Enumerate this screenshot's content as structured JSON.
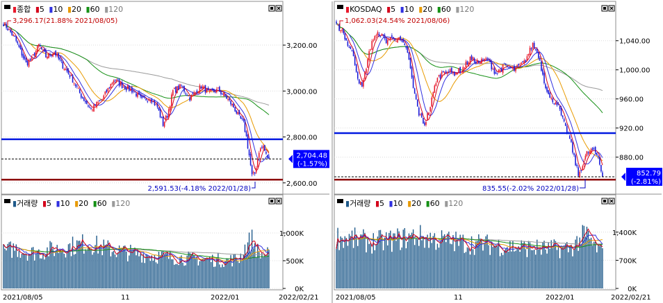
{
  "colors": {
    "up": "#e8192c",
    "down": "#1a1ad8",
    "ma5": "#d4001a",
    "ma10": "#3030e0",
    "ma20": "#e89a00",
    "ma60": "#159015",
    "ma120": "#9a9a9a",
    "support": "#8b0000",
    "resistance": "#0018e0",
    "volume": "#1f5a8a",
    "tag_bg": "#0000ff"
  },
  "panels": [
    {
      "id": "kospi",
      "legend": {
        "name": "종합",
        "ma": [
          "5",
          "10",
          "20",
          "60",
          "120"
        ]
      },
      "high_note": "3,296.17(21.88% 2021/08/05)",
      "low_note": "2,591.53(-4.18% 2022/01/28)",
      "price_tag": "2,704.48",
      "change_tag": "(-1.57%)",
      "resistance": 2790,
      "support": 2614,
      "volume_legend": {
        "name": "거래량",
        "ma": [
          "5",
          "10",
          "20",
          "60",
          "120"
        ]
      }
    },
    {
      "id": "kosdaq",
      "legend": {
        "name": "KOSDAQ",
        "ma": [
          "5",
          "10",
          "20",
          "60",
          "120"
        ]
      },
      "high_note": "1,062.03(24.54% 2021/08/06)",
      "low_note": "835.55(-2.02% 2022/01/28)",
      "price_tag": "852.79",
      "change_tag": "(-2.81%)",
      "resistance": 913,
      "support": 849,
      "volume_legend": {
        "name": "거래량",
        "ma": [
          "5",
          "10",
          "20",
          "60",
          "120"
        ]
      }
    }
  ],
  "x_axis": {
    "labels": [
      "2021/08/05",
      "11",
      "2022/01",
      "2022/02/21"
    ]
  },
  "chart_data": [
    {
      "type": "candlestick",
      "title": "종합",
      "yticks": [
        "3,200.00",
        "3,000.00",
        "2,800.00",
        "2,600.00"
      ],
      "yvalues": [
        3200,
        3000,
        2800,
        2600
      ],
      "ylim": [
        2560,
        3330
      ],
      "anchors": [
        [
          0,
          3296
        ],
        [
          4,
          3265
        ],
        [
          8,
          3230
        ],
        [
          12,
          3175
        ],
        [
          16,
          3120
        ],
        [
          20,
          3140
        ],
        [
          25,
          3200
        ],
        [
          30,
          3150
        ],
        [
          36,
          3170
        ],
        [
          42,
          3110
        ],
        [
          48,
          3060
        ],
        [
          55,
          2980
        ],
        [
          62,
          2920
        ],
        [
          70,
          2965
        ],
        [
          78,
          3050
        ],
        [
          85,
          3020
        ],
        [
          92,
          3000
        ],
        [
          98,
          2960
        ],
        [
          104,
          2970
        ],
        [
          109,
          2930
        ],
        [
          113,
          2855
        ],
        [
          116,
          2895
        ],
        [
          120,
          3000
        ],
        [
          126,
          3020
        ],
        [
          132,
          2970
        ],
        [
          140,
          3020
        ],
        [
          146,
          2990
        ],
        [
          152,
          3005
        ],
        [
          158,
          2970
        ],
        [
          163,
          2930
        ],
        [
          167,
          2885
        ],
        [
          170,
          2860
        ],
        [
          172,
          2800
        ],
        [
          174,
          2720
        ],
        [
          176,
          2630
        ],
        [
          178,
          2640
        ],
        [
          181,
          2740
        ],
        [
          184,
          2760
        ],
        [
          186,
          2720
        ],
        [
          188,
          2704
        ]
      ],
      "vol_ylim": [
        0,
        1450000
      ],
      "vol_yticks": [
        "1,000K",
        "500K",
        "0K"
      ],
      "vol_yvalues": [
        1000000,
        500000,
        0
      ],
      "vol_anchors": [
        [
          0,
          650
        ],
        [
          8,
          730
        ],
        [
          20,
          640
        ],
        [
          35,
          700
        ],
        [
          48,
          760
        ],
        [
          60,
          820
        ],
        [
          72,
          720
        ],
        [
          90,
          640
        ],
        [
          104,
          600
        ],
        [
          115,
          570
        ],
        [
          130,
          540
        ],
        [
          145,
          520
        ],
        [
          158,
          500
        ],
        [
          167,
          540
        ],
        [
          172,
          780
        ],
        [
          176,
          880
        ],
        [
          181,
          620
        ],
        [
          188,
          600
        ]
      ]
    },
    {
      "type": "candlestick",
      "title": "KOSDAQ",
      "yticks": [
        "1,040.00",
        "1,000.00",
        "960.00",
        "920.00",
        "880.00"
      ],
      "yvalues": [
        1040,
        1000,
        960,
        920,
        880
      ],
      "ylim": [
        832,
        1075
      ],
      "anchors": [
        [
          0,
          1060
        ],
        [
          4,
          1055
        ],
        [
          8,
          1035
        ],
        [
          12,
          1020
        ],
        [
          15,
          990
        ],
        [
          18,
          975
        ],
        [
          21,
          1005
        ],
        [
          25,
          1040
        ],
        [
          30,
          1050
        ],
        [
          35,
          1040
        ],
        [
          40,
          1045
        ],
        [
          45,
          1040
        ],
        [
          50,
          1025
        ],
        [
          54,
          975
        ],
        [
          58,
          940
        ],
        [
          62,
          925
        ],
        [
          66,
          950
        ],
        [
          70,
          985
        ],
        [
          76,
          1000
        ],
        [
          82,
          995
        ],
        [
          88,
          1000
        ],
        [
          94,
          1015
        ],
        [
          100,
          1010
        ],
        [
          106,
          1015
        ],
        [
          112,
          995
        ],
        [
          118,
          1005
        ],
        [
          125,
          1000
        ],
        [
          132,
          1010
        ],
        [
          138,
          1035
        ],
        [
          142,
          1020
        ],
        [
          146,
          985
        ],
        [
          150,
          960
        ],
        [
          155,
          955
        ],
        [
          160,
          925
        ],
        [
          164,
          905
        ],
        [
          167,
          880
        ],
        [
          170,
          855
        ],
        [
          173,
          870
        ],
        [
          176,
          885
        ],
        [
          180,
          890
        ],
        [
          184,
          880
        ],
        [
          187,
          853
        ]
      ],
      "vol_ylim": [
        0,
        2000000
      ],
      "vol_yticks": [
        "1,400K",
        "700K",
        "0K"
      ],
      "vol_yvalues": [
        1400000,
        700000,
        0
      ],
      "vol_anchors": [
        [
          0,
          1280
        ],
        [
          10,
          1230
        ],
        [
          25,
          1150
        ],
        [
          40,
          1200
        ],
        [
          55,
          1300
        ],
        [
          70,
          1220
        ],
        [
          90,
          1130
        ],
        [
          110,
          1080
        ],
        [
          130,
          1020
        ],
        [
          150,
          980
        ],
        [
          165,
          1010
        ],
        [
          172,
          1250
        ],
        [
          176,
          1320
        ],
        [
          181,
          1050
        ],
        [
          187,
          900
        ]
      ]
    }
  ]
}
